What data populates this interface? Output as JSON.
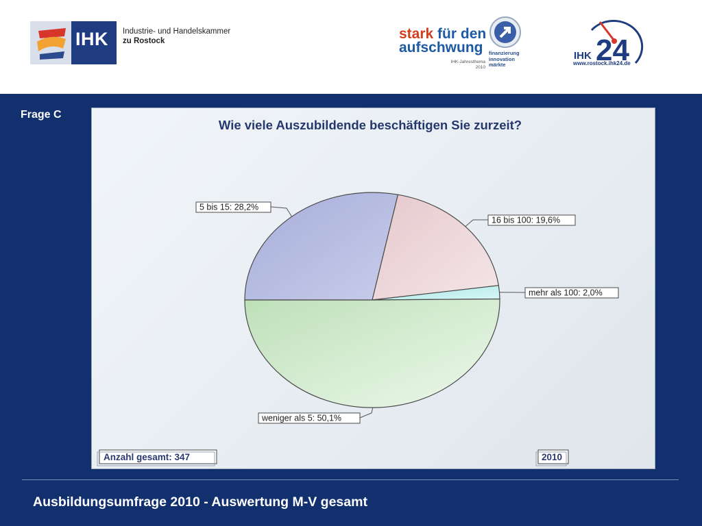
{
  "header": {
    "ihk_logo_word": "IHK",
    "ihk_caption_line1": "Industrie- und Handelskammer",
    "ihk_caption_line2": "zu Rostock",
    "stark_line1_a": "stark",
    "stark_line1_b": " für den",
    "stark_line2": "aufschwung",
    "stark_sub_line1": "IHK-Jahresthema",
    "stark_sub_line2": "2010",
    "stark_tags": [
      "finanzierung",
      "innovation",
      "märkte"
    ],
    "ihk24_prefix": "IHK",
    "ihk24_number": "24",
    "ihk24_url": "www.rostock.ihk24.de"
  },
  "slide": {
    "question_label": "Frage C",
    "footer_title": "Ausbildungsumfrage 2010 - Auswertung M-V gesamt"
  },
  "chart_data": {
    "type": "pie",
    "title": "Wie viele Auszubildende beschäftigen Sie zurzeit?",
    "slices": [
      {
        "label": "5 bis 15: 28,2%",
        "value": 28.2,
        "color": "#b1b7de"
      },
      {
        "label": "16 bis 100: 19,6%",
        "value": 19.6,
        "color": "#ecd5d8"
      },
      {
        "label": "mehr als 100: 2,0%",
        "value": 2.0,
        "color": "#bfeeee"
      },
      {
        "label": "weniger als 5: 50,1%",
        "value": 50.1,
        "color": "#cfe9cb"
      }
    ],
    "footer_left": "Anzahl gesamt: 347",
    "footer_right": "2010"
  }
}
